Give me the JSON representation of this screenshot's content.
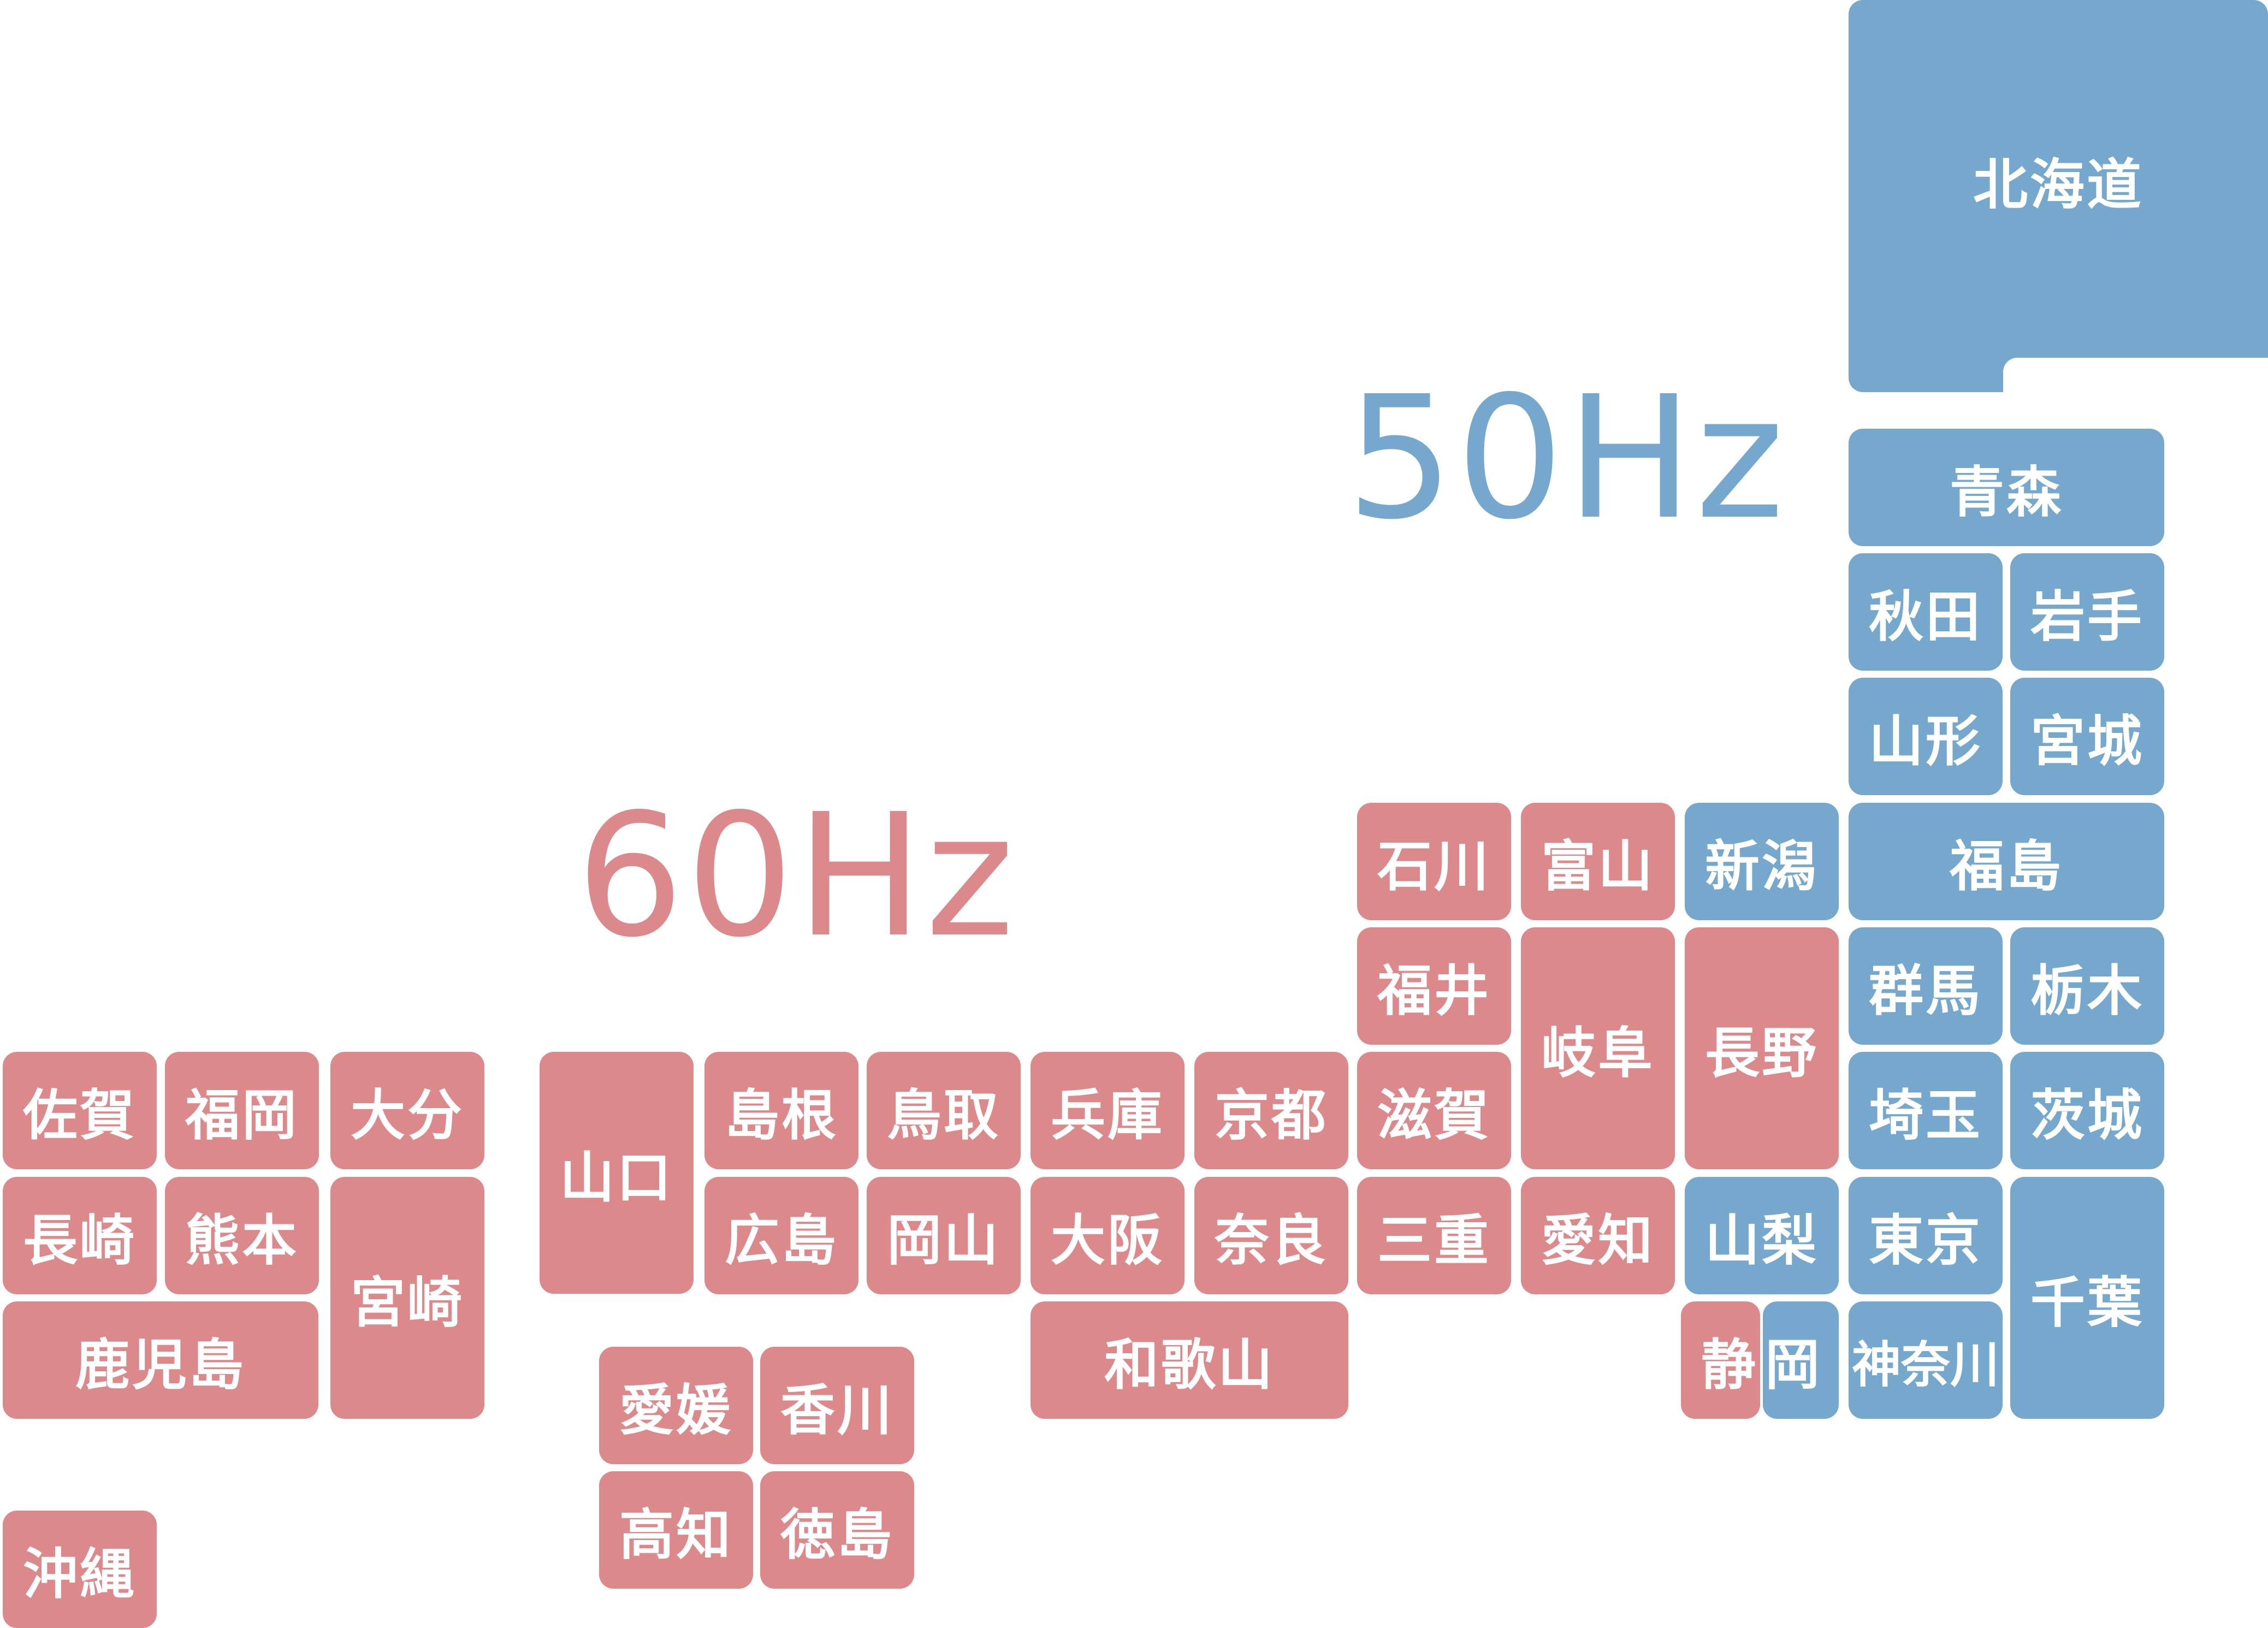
{
  "colors": {
    "hz60": "#db898b",
    "hz50": "#76a8ce"
  },
  "frequency_labels": {
    "hz50": "50Hz",
    "hz60": "60Hz"
  },
  "regions": {
    "hokkaido": {
      "label": "北海道",
      "frequency": "50Hz"
    },
    "aomori": {
      "label": "青森",
      "frequency": "50Hz"
    },
    "akita": {
      "label": "秋田",
      "frequency": "50Hz"
    },
    "iwate": {
      "label": "岩手",
      "frequency": "50Hz"
    },
    "yamagata": {
      "label": "山形",
      "frequency": "50Hz"
    },
    "miyagi": {
      "label": "宮城",
      "frequency": "50Hz"
    },
    "niigata": {
      "label": "新潟",
      "frequency": "50Hz"
    },
    "fukushima": {
      "label": "福島",
      "frequency": "50Hz"
    },
    "nagano": {
      "label": "長野",
      "frequency": "60Hz"
    },
    "gunma": {
      "label": "群馬",
      "frequency": "50Hz"
    },
    "tochigi": {
      "label": "栃木",
      "frequency": "50Hz"
    },
    "saitama": {
      "label": "埼玉",
      "frequency": "50Hz"
    },
    "ibaraki": {
      "label": "茨城",
      "frequency": "50Hz"
    },
    "yamanashi": {
      "label": "山梨",
      "frequency": "50Hz"
    },
    "tokyo": {
      "label": "東京",
      "frequency": "50Hz"
    },
    "chiba": {
      "label": "千葉",
      "frequency": "50Hz"
    },
    "kanagawa": {
      "label": "神奈川",
      "frequency": "50Hz"
    },
    "shizuoka_west": {
      "label": "静",
      "frequency": "60Hz"
    },
    "shizuoka_east": {
      "label": "岡",
      "frequency": "50Hz"
    },
    "ishikawa": {
      "label": "石川",
      "frequency": "60Hz"
    },
    "toyama": {
      "label": "富山",
      "frequency": "60Hz"
    },
    "fukui": {
      "label": "福井",
      "frequency": "60Hz"
    },
    "gifu": {
      "label": "岐阜",
      "frequency": "60Hz"
    },
    "shiga": {
      "label": "滋賀",
      "frequency": "60Hz"
    },
    "mie": {
      "label": "三重",
      "frequency": "60Hz"
    },
    "aichi": {
      "label": "愛知",
      "frequency": "60Hz"
    },
    "hyogo": {
      "label": "兵庫",
      "frequency": "60Hz"
    },
    "kyoto": {
      "label": "京都",
      "frequency": "60Hz"
    },
    "osaka": {
      "label": "大阪",
      "frequency": "60Hz"
    },
    "nara": {
      "label": "奈良",
      "frequency": "60Hz"
    },
    "wakayama": {
      "label": "和歌山",
      "frequency": "60Hz"
    },
    "shimane": {
      "label": "島根",
      "frequency": "60Hz"
    },
    "tottori": {
      "label": "鳥取",
      "frequency": "60Hz"
    },
    "hiroshima": {
      "label": "広島",
      "frequency": "60Hz"
    },
    "okayama": {
      "label": "岡山",
      "frequency": "60Hz"
    },
    "yamaguchi": {
      "label": "山口",
      "frequency": "60Hz"
    },
    "ehime": {
      "label": "愛媛",
      "frequency": "60Hz"
    },
    "kagawa": {
      "label": "香川",
      "frequency": "60Hz"
    },
    "kochi": {
      "label": "高知",
      "frequency": "60Hz"
    },
    "tokushima": {
      "label": "徳島",
      "frequency": "60Hz"
    },
    "saga": {
      "label": "佐賀",
      "frequency": "60Hz"
    },
    "fukuoka": {
      "label": "福岡",
      "frequency": "60Hz"
    },
    "oita": {
      "label": "大分",
      "frequency": "60Hz"
    },
    "nagasaki": {
      "label": "長崎",
      "frequency": "60Hz"
    },
    "kumamoto": {
      "label": "熊本",
      "frequency": "60Hz"
    },
    "miyazaki": {
      "label": "宮崎",
      "frequency": "60Hz"
    },
    "kagoshima": {
      "label": "鹿児島",
      "frequency": "60Hz"
    },
    "okinawa": {
      "label": "沖縄",
      "frequency": "60Hz"
    }
  }
}
